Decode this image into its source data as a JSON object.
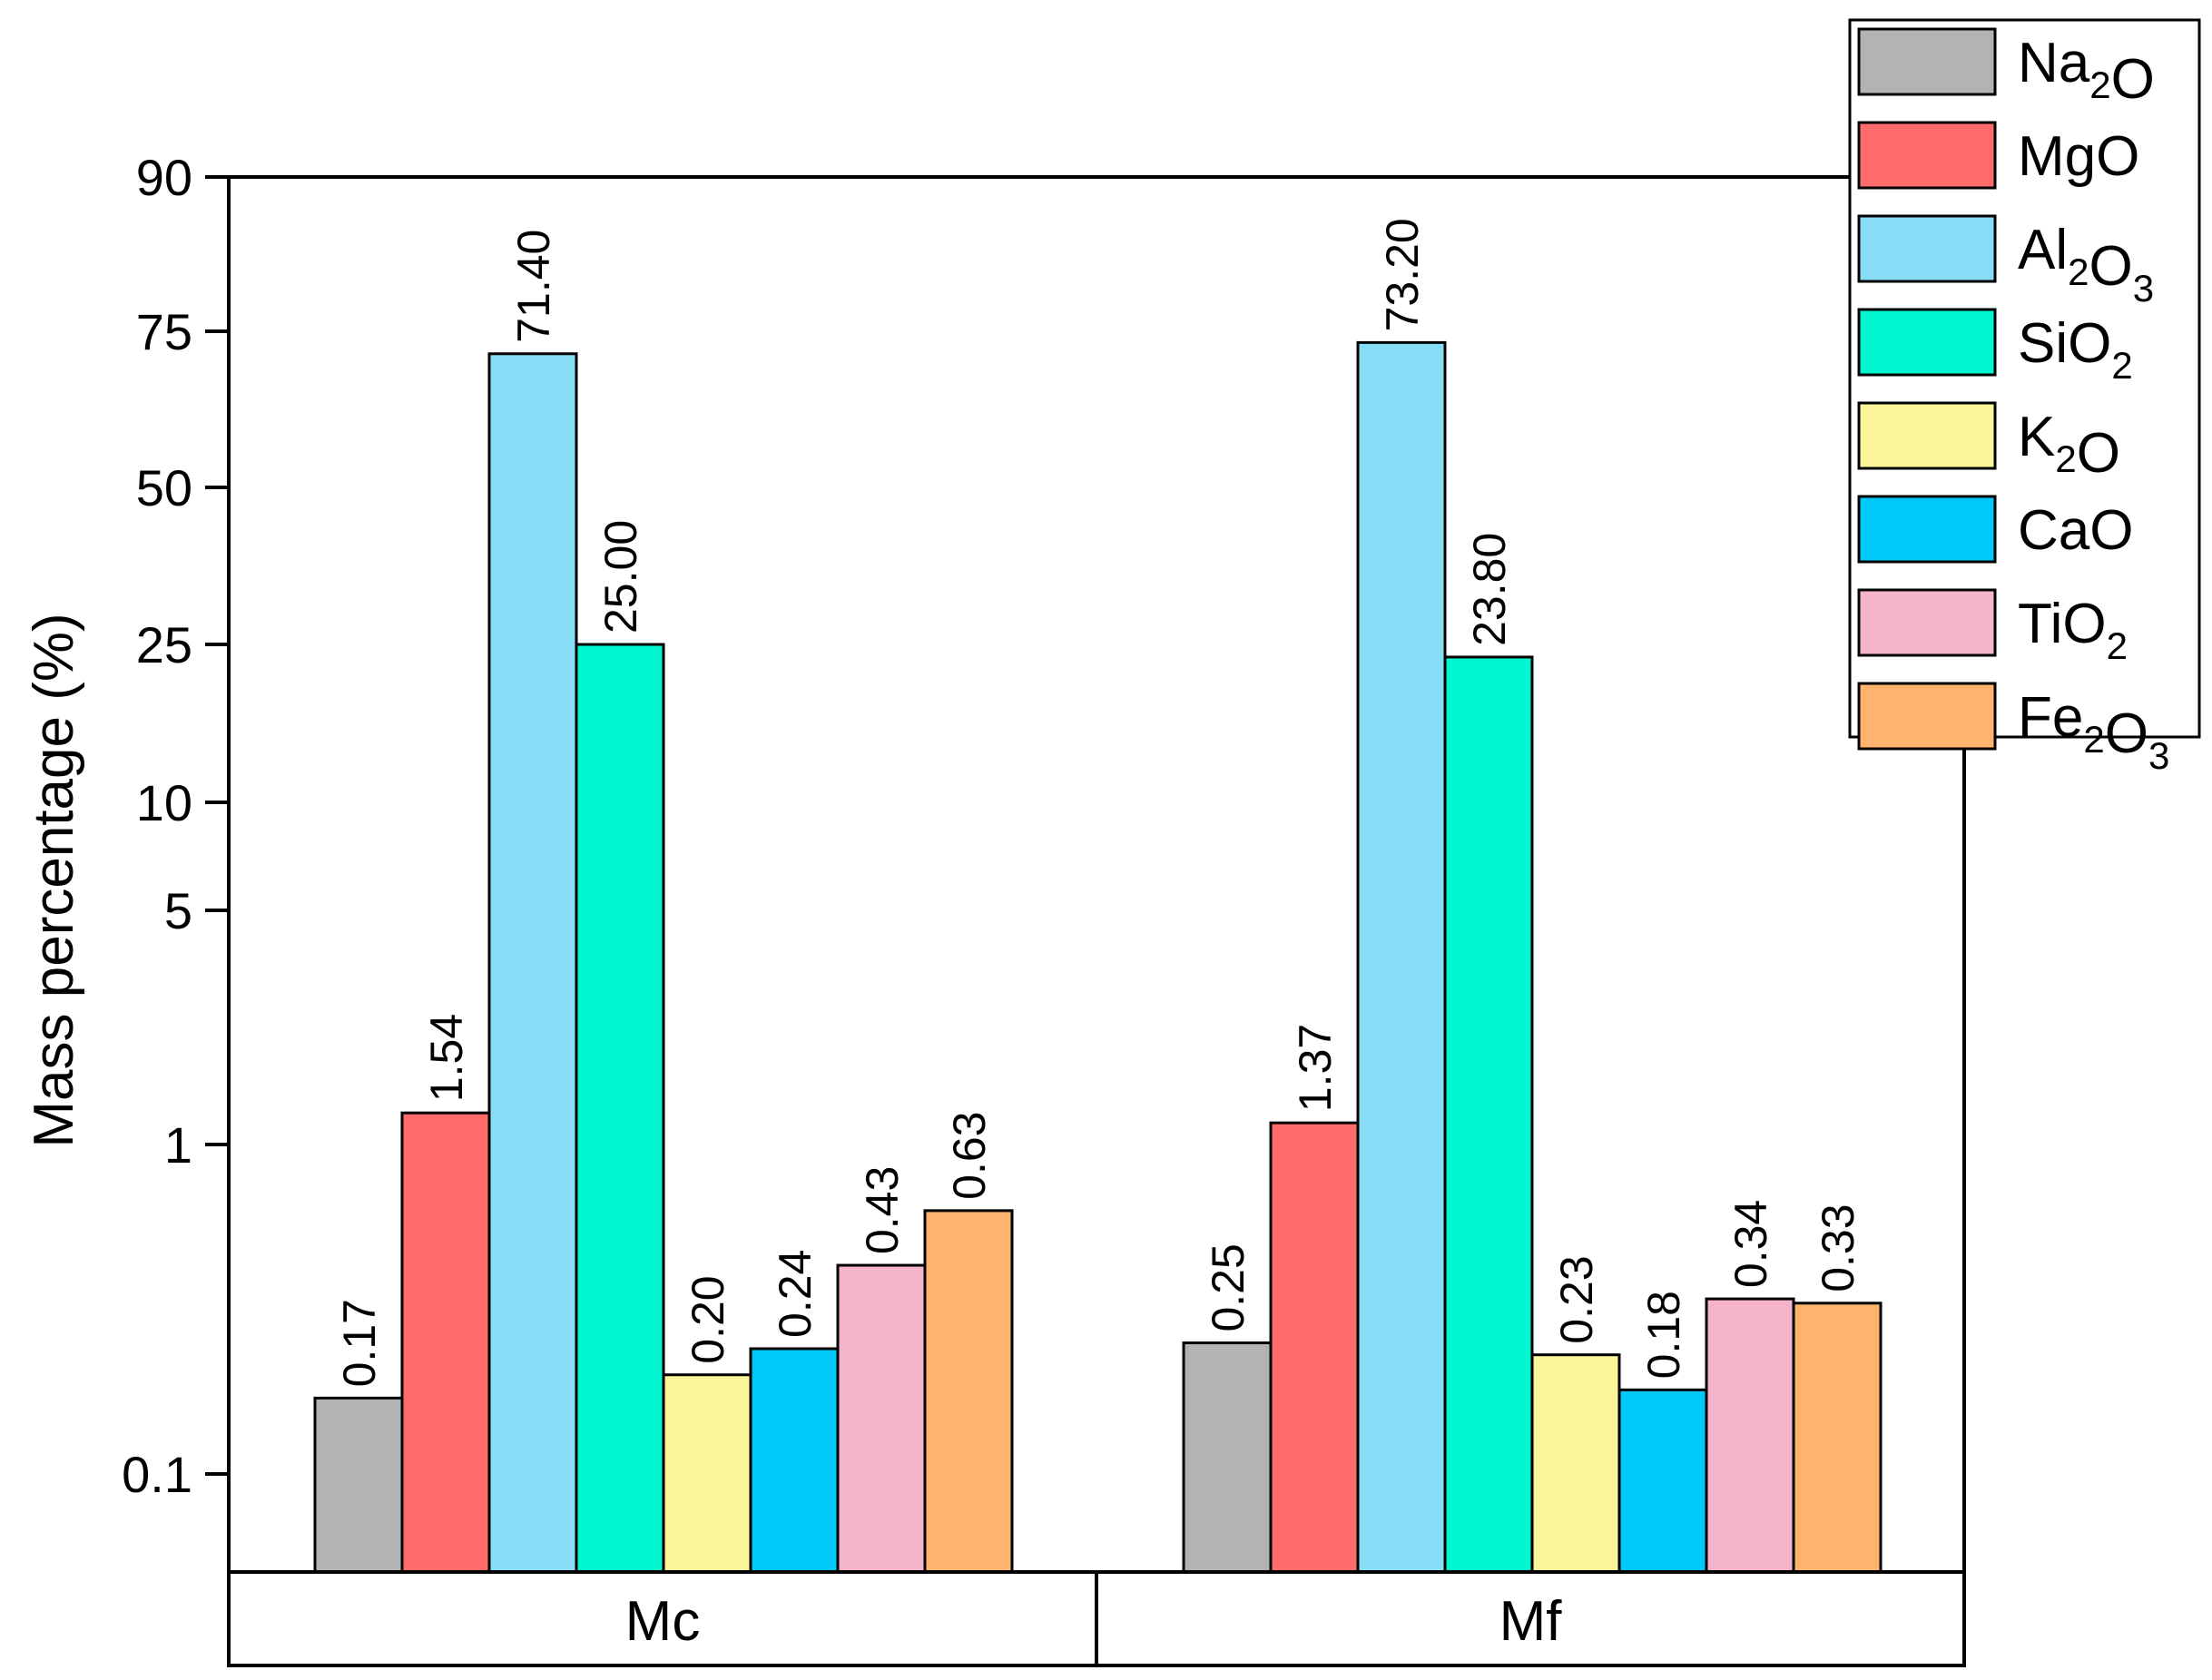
{
  "chart_data": {
    "type": "bar",
    "ylabel": "Mass percentage (%)",
    "xlabel": "",
    "y_scale": "custom log-like (axis break scaling)",
    "y_ticks": [
      {
        "value": 0.1,
        "label": "0.1"
      },
      {
        "value": 1,
        "label": "1"
      },
      {
        "value": 5,
        "label": "5"
      },
      {
        "value": 10,
        "label": "10"
      },
      {
        "value": 25,
        "label": "25"
      },
      {
        "value": 50,
        "label": "50"
      },
      {
        "value": 75,
        "label": "75"
      },
      {
        "value": 90,
        "label": "90"
      }
    ],
    "categories": [
      "Mc",
      "Mf"
    ],
    "series": [
      {
        "name": "Na2O",
        "legend_main": [
          "Na",
          "O"
        ],
        "legend_sub": [
          "2",
          ""
        ],
        "color": "#b3b3b3",
        "values": [
          0.17,
          0.25
        ],
        "labels": [
          "0.17",
          "0.25"
        ]
      },
      {
        "name": "MgO",
        "legend_main": [
          "MgO"
        ],
        "legend_sub": [
          ""
        ],
        "color": "#ff6b6b",
        "values": [
          1.54,
          1.37
        ],
        "labels": [
          "1.54",
          "1.37"
        ]
      },
      {
        "name": "Al2O3",
        "legend_main": [
          "Al",
          "O"
        ],
        "legend_sub": [
          "2",
          "3"
        ],
        "color": "#87ddf5",
        "values": [
          71.4,
          73.2
        ],
        "labels": [
          "71.40",
          "73.20"
        ]
      },
      {
        "name": "SiO2",
        "legend_main": [
          "SiO"
        ],
        "legend_sub": [
          "2"
        ],
        "color": "#00f5d0",
        "values": [
          25.0,
          23.8
        ],
        "labels": [
          "25.00",
          "23.80"
        ]
      },
      {
        "name": "K2O",
        "legend_main": [
          "K",
          "O"
        ],
        "legend_sub": [
          "2",
          ""
        ],
        "color": "#fdf59a",
        "values": [
          0.2,
          0.23
        ],
        "labels": [
          "0.20",
          "0.23"
        ]
      },
      {
        "name": "CaO",
        "legend_main": [
          "CaO"
        ],
        "legend_sub": [
          ""
        ],
        "color": "#00c8f8",
        "values": [
          0.24,
          0.18
        ],
        "labels": [
          "0.24",
          "0.18"
        ]
      },
      {
        "name": "TiO2",
        "legend_main": [
          "TiO"
        ],
        "legend_sub": [
          "2"
        ],
        "color": "#f5b3cc",
        "values": [
          0.43,
          0.34
        ],
        "labels": [
          "0.43",
          "0.34"
        ]
      },
      {
        "name": "Fe2O3",
        "legend_main": [
          "Fe",
          "O"
        ],
        "legend_sub": [
          "2",
          "3"
        ],
        "color": "#ffb46e",
        "values": [
          0.63,
          0.33
        ],
        "labels": [
          "0.63",
          "0.33"
        ]
      }
    ],
    "legend_position": "top-right",
    "grid": false
  }
}
